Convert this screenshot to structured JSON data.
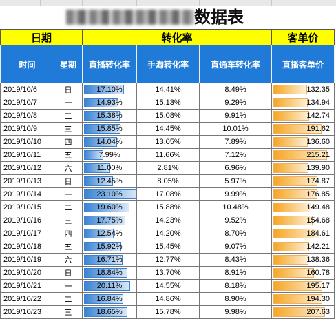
{
  "title": "数据表",
  "group_headers": {
    "date": "日期",
    "conversion": "转化率",
    "unit_price": "客单价"
  },
  "column_headers": {
    "time": "时间",
    "weekday": "星期",
    "live_conv": "直播转化率",
    "taobao_conv": "手淘转化率",
    "ztc_conv": "直通车转化率",
    "live_price": "直播客单价"
  },
  "colors": {
    "group_header_bg": "#ffff00",
    "header_bg": "#1f7ad8",
    "blue_bar": "#3a83d4",
    "orange_bar": "#f6a623"
  },
  "rows": [
    {
      "date": "2019/10/6",
      "weekday": "日",
      "live": "17.10%",
      "taobao": "14.41%",
      "ztc": "8.49%",
      "price": "132.35",
      "live_v": 17.1,
      "price_v": 132.35
    },
    {
      "date": "2019/10/7",
      "weekday": "一",
      "live": "14.93%",
      "taobao": "15.13%",
      "ztc": "9.29%",
      "price": "134.94",
      "live_v": 14.93,
      "price_v": 134.94
    },
    {
      "date": "2019/10/8",
      "weekday": "二",
      "live": "15.38%",
      "taobao": "15.08%",
      "ztc": "9.91%",
      "price": "142.74",
      "live_v": 15.38,
      "price_v": 142.74
    },
    {
      "date": "2019/10/9",
      "weekday": "三",
      "live": "15.85%",
      "taobao": "14.45%",
      "ztc": "10.01%",
      "price": "191.62",
      "live_v": 15.85,
      "price_v": 191.62
    },
    {
      "date": "2019/10/10",
      "weekday": "四",
      "live": "14.04%",
      "taobao": "13.05%",
      "ztc": "7.89%",
      "price": "136.60",
      "live_v": 14.04,
      "price_v": 136.6
    },
    {
      "date": "2019/10/11",
      "weekday": "五",
      "live": "7.99%",
      "taobao": "11.66%",
      "ztc": "7.12%",
      "price": "215.21",
      "live_v": 7.99,
      "price_v": 215.21
    },
    {
      "date": "2019/10/12",
      "weekday": "六",
      "live": "11.00%",
      "taobao": "2.81%",
      "ztc": "6.96%",
      "price": "139.90",
      "live_v": 11.0,
      "price_v": 139.9
    },
    {
      "date": "2019/10/13",
      "weekday": "日",
      "live": "12.45%",
      "taobao": "8.05%",
      "ztc": "5.97%",
      "price": "174.87",
      "live_v": 12.45,
      "price_v": 174.87
    },
    {
      "date": "2019/10/14",
      "weekday": "一",
      "live": "23.10%",
      "taobao": "17.08%",
      "ztc": "9.99%",
      "price": "176.85",
      "live_v": 23.1,
      "price_v": 176.85
    },
    {
      "date": "2019/10/15",
      "weekday": "二",
      "live": "19.60%",
      "taobao": "15.88%",
      "ztc": "10.48%",
      "price": "149.48",
      "live_v": 19.6,
      "price_v": 149.48
    },
    {
      "date": "2019/10/16",
      "weekday": "三",
      "live": "17.75%",
      "taobao": "14.23%",
      "ztc": "9.52%",
      "price": "154.68",
      "live_v": 17.75,
      "price_v": 154.68
    },
    {
      "date": "2019/10/17",
      "weekday": "四",
      "live": "12.54%",
      "taobao": "14.20%",
      "ztc": "8.70%",
      "price": "184.61",
      "live_v": 12.54,
      "price_v": 184.61
    },
    {
      "date": "2019/10/18",
      "weekday": "五",
      "live": "15.92%",
      "taobao": "15.45%",
      "ztc": "9.07%",
      "price": "142.21",
      "live_v": 15.92,
      "price_v": 142.21
    },
    {
      "date": "2019/10/19",
      "weekday": "六",
      "live": "16.71%",
      "taobao": "12.77%",
      "ztc": "8.43%",
      "price": "138.36",
      "live_v": 16.71,
      "price_v": 138.36
    },
    {
      "date": "2019/10/20",
      "weekday": "日",
      "live": "18.84%",
      "taobao": "13.70%",
      "ztc": "8.91%",
      "price": "160.78",
      "live_v": 18.84,
      "price_v": 160.78
    },
    {
      "date": "2019/10/21",
      "weekday": "一",
      "live": "20.11%",
      "taobao": "14.55%",
      "ztc": "8.18%",
      "price": "195.17",
      "live_v": 20.11,
      "price_v": 195.17
    },
    {
      "date": "2019/10/22",
      "weekday": "二",
      "live": "16.84%",
      "taobao": "14.86%",
      "ztc": "8.90%",
      "price": "194.30",
      "live_v": 16.84,
      "price_v": 194.3
    },
    {
      "date": "2019/10/23",
      "weekday": "三",
      "live": "18.65%",
      "taobao": "15.78%",
      "ztc": "9.98%",
      "price": "207.63",
      "live_v": 18.65,
      "price_v": 207.63
    }
  ]
}
